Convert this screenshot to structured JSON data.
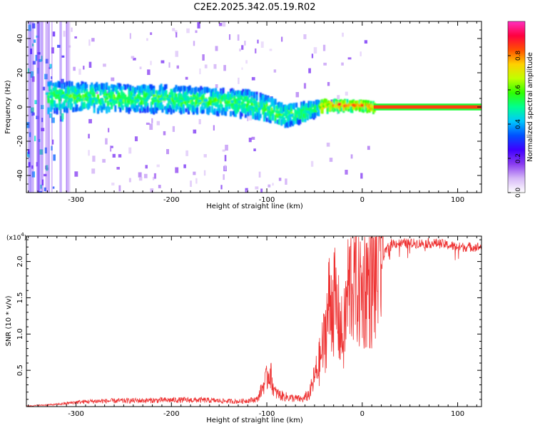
{
  "title": "C2E2.2025.342.05.19.R02",
  "chart_data": [
    {
      "type": "heatmap",
      "xlabel": "Height of straight line (km)",
      "ylabel": "Frequency (Hz)",
      "xlim": [
        -352,
        125
      ],
      "ylim": [
        -50,
        50
      ],
      "xticks": [
        -300,
        -200,
        -100,
        0,
        100
      ],
      "yticks": [
        -40,
        -20,
        0,
        20,
        40
      ],
      "colorbar": {
        "label": "Normalized spectral amplitude",
        "range": [
          0,
          1
        ],
        "ticks": [
          "0.0",
          "0.2",
          "0.4",
          "0.6",
          "0.8"
        ],
        "colormap": [
          "#ffffff",
          "#d6b8f7",
          "#8a3cf0",
          "#4000ff",
          "#0050ff",
          "#00c8ff",
          "#00ff90",
          "#30ff00",
          "#c0ff00",
          "#ffd000",
          "#ff5000",
          "#ff0040",
          "#ff30c0"
        ]
      },
      "band_center_hz": [
        {
          "x": -330,
          "f": 6
        },
        {
          "x": -300,
          "f": 6
        },
        {
          "x": -250,
          "f": 5
        },
        {
          "x": -200,
          "f": 5
        },
        {
          "x": -150,
          "f": 3
        },
        {
          "x": -120,
          "f": 2
        },
        {
          "x": -100,
          "f": -1
        },
        {
          "x": -85,
          "f": -5
        },
        {
          "x": -70,
          "f": -4
        },
        {
          "x": -55,
          "f": -2
        },
        {
          "x": -40,
          "f": 1
        },
        {
          "x": -20,
          "f": 1
        },
        {
          "x": 0,
          "f": 1
        },
        {
          "x": 12,
          "f": 0
        },
        {
          "x": 125,
          "f": 0
        }
      ],
      "band_halfwidth_hz": [
        {
          "x": -330,
          "w": 8
        },
        {
          "x": -200,
          "w": 7
        },
        {
          "x": -100,
          "w": 7
        },
        {
          "x": -60,
          "w": 5
        },
        {
          "x": -30,
          "w": 2.5
        },
        {
          "x": 0,
          "w": 2
        },
        {
          "x": 125,
          "w": 1.5
        }
      ]
    },
    {
      "type": "line",
      "xlabel": "Height of straight line (km)",
      "ylabel": "SNR (10 * v/v)",
      "y_multiplier": "(x10^4)",
      "xlim": [
        -352,
        125
      ],
      "ylim": [
        0,
        23500
      ],
      "xticks": [
        -300,
        -200,
        -100,
        0,
        100
      ],
      "yticks": [
        "0.5",
        "1.0",
        "1.5",
        "2.0"
      ],
      "color": "#ee3333",
      "series": [
        {
          "x": [
            -350,
            -320,
            -300,
            -280,
            -250,
            -220,
            -200,
            -170,
            -150,
            -130,
            -110,
            -100,
            -97,
            -92,
            -85,
            -75,
            -62,
            -55,
            -50,
            -45,
            -40,
            -35,
            -30,
            -25,
            -20,
            -15,
            -10,
            -5,
            0,
            5,
            10,
            15,
            20,
            25,
            30,
            40,
            60,
            80,
            100,
            110,
            120,
            125
          ],
          "values": [
            100,
            300,
            600,
            750,
            800,
            850,
            900,
            900,
            800,
            700,
            1000,
            4000,
            5000,
            2000,
            1500,
            1200,
            1000,
            1800,
            4000,
            6000,
            9000,
            14000,
            15000,
            12000,
            9000,
            16000,
            18000,
            17000,
            15500,
            17500,
            16500,
            18000,
            20000,
            21500,
            22500,
            22500,
            22500,
            22500,
            22000,
            22000,
            22000,
            22000
          ]
        }
      ]
    }
  ]
}
